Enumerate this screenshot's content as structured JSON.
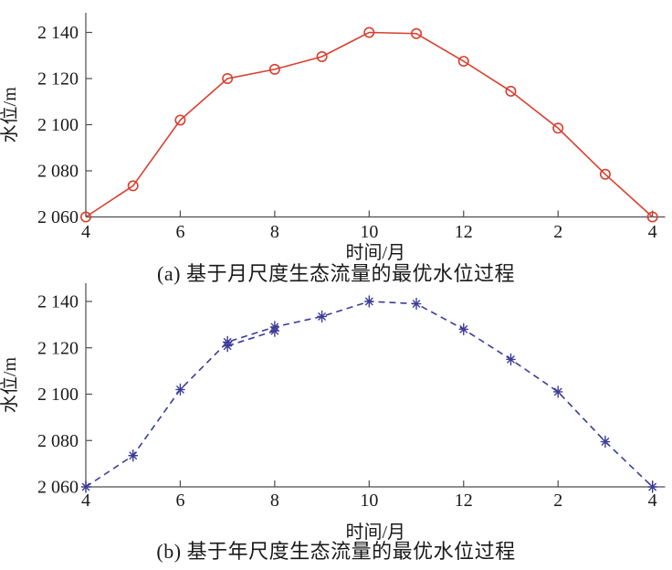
{
  "figure": {
    "background": "#ffffff",
    "text_color": "#1a1a1a",
    "axis_color": "#4d4d4d"
  },
  "chart_data": [
    {
      "id": "a",
      "type": "line",
      "title": "(a) 基于月尺度生态流量的最优水位过程",
      "xlabel": "时间/月",
      "ylabel": "水位/m",
      "line_style": "solid",
      "marker": "circle",
      "color": "#d8402f",
      "x_months": [
        "4",
        "5",
        "6",
        "7",
        "8",
        "9",
        "10",
        "11",
        "12",
        "1",
        "2",
        "3",
        "4"
      ],
      "values": [
        2060,
        2073.5,
        2102,
        2120,
        2124,
        2129.5,
        2140,
        2139.5,
        2127.5,
        2114.5,
        2098.5,
        2078.5,
        2060
      ],
      "x_ticks": {
        "positions": [
          0,
          2,
          4,
          6,
          8,
          10,
          12
        ],
        "labels": [
          "4",
          "6",
          "8",
          "10",
          "12",
          "2",
          "4"
        ]
      },
      "y_ticks": {
        "values": [
          2060,
          2080,
          2100,
          2120,
          2140
        ],
        "labels": [
          "2 060",
          "2 080",
          "2 100",
          "2 120",
          "2 140"
        ]
      },
      "ylim": [
        2060,
        2148
      ],
      "grid": false,
      "legend": null
    },
    {
      "id": "b",
      "type": "line",
      "title": "(b) 基于年尺度生态流量的最优水位过程",
      "xlabel": "时间/月",
      "ylabel": "水位/m",
      "line_style": "dashed",
      "marker": "asterisk",
      "color": "#3c3c98",
      "x_months": [
        "4",
        "5",
        "6",
        "7",
        "8",
        "9",
        "10",
        "11",
        "12",
        "1",
        "2",
        "3",
        "4"
      ],
      "values": [
        2060,
        2073.5,
        2102,
        2122.5,
        2129,
        2133.5,
        2140,
        2139,
        2128,
        2115,
        2101,
        2079.5,
        2060
      ],
      "overlap_segment": {
        "positions": [
          3,
          4
        ],
        "values": [
          2120.8,
          2127.3
        ]
      },
      "x_ticks": {
        "positions": [
          0,
          2,
          4,
          6,
          8,
          10,
          12
        ],
        "labels": [
          "4",
          "6",
          "8",
          "10",
          "12",
          "2",
          "4"
        ]
      },
      "y_ticks": {
        "values": [
          2060,
          2080,
          2100,
          2120,
          2140
        ],
        "labels": [
          "2 060",
          "2 080",
          "2 100",
          "2 120",
          "2 140"
        ]
      },
      "ylim": [
        2060,
        2148
      ],
      "grid": false,
      "legend": null
    }
  ]
}
